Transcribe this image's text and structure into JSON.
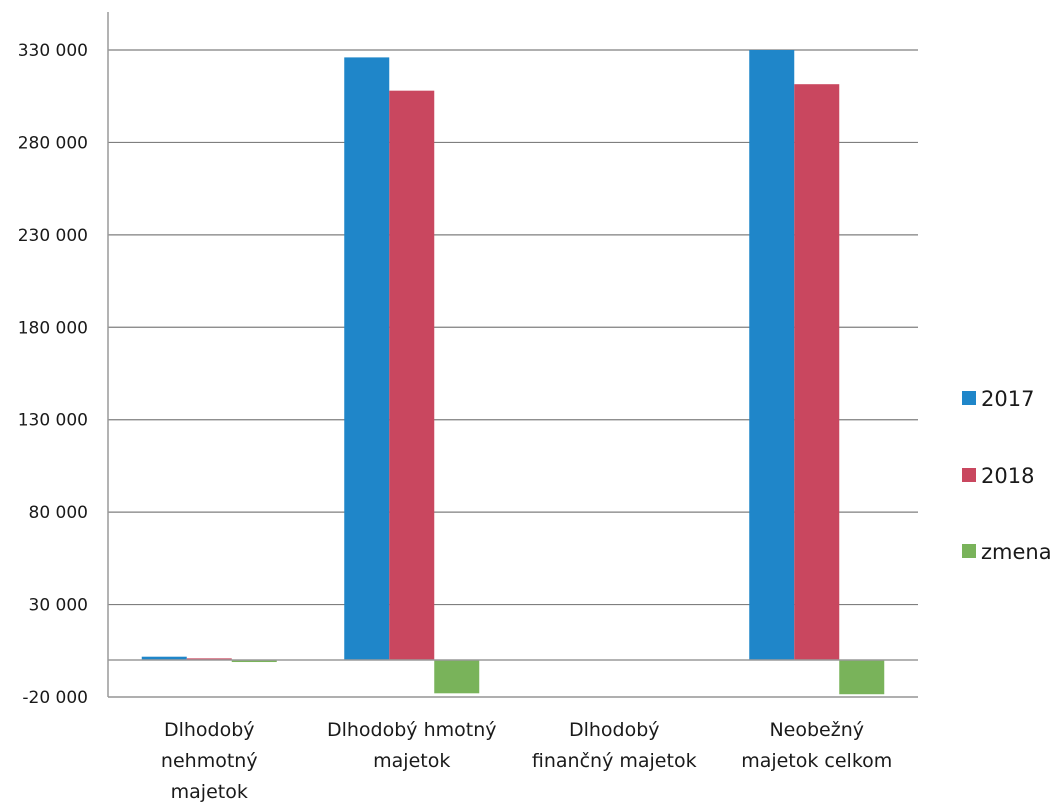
{
  "chart_data": {
    "type": "bar",
    "title": "",
    "xlabel": "",
    "ylabel": "",
    "categories": [
      [
        "Dlhodobý",
        "nehmotný",
        "majetok"
      ],
      [
        "Dlhodobý hmotný",
        "majetok"
      ],
      [
        "Dlhodobý",
        "finančný majetok"
      ],
      [
        "Neobežný",
        "majetok celkom"
      ]
    ],
    "series": [
      {
        "name": "2017",
        "color": "#1f86c9",
        "values": [
          1800,
          326000,
          0,
          330000
        ]
      },
      {
        "name": "2018",
        "color": "#c9475f",
        "values": [
          900,
          308000,
          0,
          311500
        ]
      },
      {
        "name": "zmena",
        "color": "#79b35a",
        "values": [
          -900,
          -18000,
          0,
          -18500
        ]
      }
    ],
    "ylim": [
      -20000,
      330000
    ],
    "yticks": [
      -20000,
      30000,
      80000,
      130000,
      180000,
      230000,
      280000,
      330000
    ],
    "ytick_labels": [
      "-20 000",
      "30 000",
      "80 000",
      "130 000",
      "180 000",
      "230 000",
      "280 000",
      "330 000"
    ],
    "grid": true,
    "legend_position": "right"
  }
}
